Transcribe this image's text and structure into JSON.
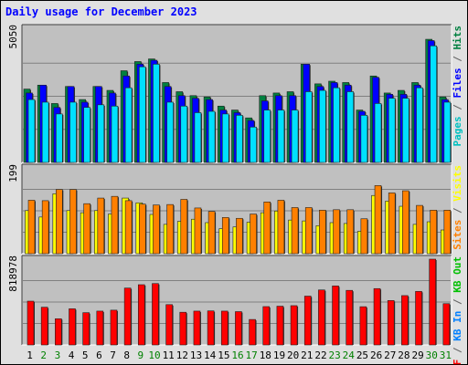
{
  "chart_data": {
    "type": "bar",
    "title": "Daily usage for December 2023",
    "categories": [
      "1",
      "2",
      "3",
      "4",
      "5",
      "6",
      "7",
      "8",
      "9",
      "10",
      "11",
      "12",
      "13",
      "14",
      "15",
      "16",
      "17",
      "18",
      "19",
      "20",
      "21",
      "22",
      "23",
      "24",
      "25",
      "26",
      "27",
      "28",
      "29",
      "30",
      "31"
    ],
    "weekend_days": [
      "2",
      "3",
      "9",
      "10",
      "16",
      "17",
      "23",
      "24",
      "30",
      "31"
    ],
    "panels": [
      {
        "name": "hits-files-pages",
        "ymax": 5050,
        "ymax_label": "5050",
        "right_labels": [
          {
            "text": "Pages",
            "color": "#00c0c0"
          },
          {
            "text": " / ",
            "color": "#606060"
          },
          {
            "text": "Files",
            "color": "#0000ff"
          },
          {
            "text": " / ",
            "color": "#606060"
          },
          {
            "text": "Hits",
            "color": "#008040"
          }
        ],
        "series": [
          {
            "name": "Hits",
            "color": "#008040",
            "values": [
              2800,
              2950,
              2250,
              2900,
              2400,
              2900,
              2750,
              3500,
              3850,
              3950,
              3050,
              2700,
              2550,
              2500,
              2150,
              2000,
              1700,
              2550,
              2650,
              2700,
              3750,
              3000,
              3100,
              3050,
              2000,
              3300,
              2650,
              2750,
              3050,
              4700,
              2500
            ]
          },
          {
            "name": "Files",
            "color": "#0000ff",
            "values": [
              2650,
              2950,
              2100,
              2900,
              2300,
              2900,
              2650,
              3300,
              3750,
              3900,
              2900,
              2550,
              2450,
              2400,
              2000,
              1900,
              1600,
              2350,
              2550,
              2550,
              3750,
              2900,
              3050,
              2950,
              1950,
              3250,
              2600,
              2600,
              2950,
              4650,
              2400
            ]
          },
          {
            "name": "Pages",
            "color": "#00e0ff",
            "values": [
              2400,
              2300,
              1850,
              2300,
              2100,
              2200,
              2150,
              2850,
              3650,
              3750,
              2300,
              2150,
              1900,
              1950,
              1850,
              1800,
              1350,
              2000,
              2000,
              2000,
              2700,
              2750,
              2850,
              2700,
              1800,
              2250,
              2450,
              2450,
              2850,
              4450,
              2300
            ]
          }
        ]
      },
      {
        "name": "visits-sites",
        "ymax": 199,
        "ymax_label": "199",
        "right_labels": [
          {
            "text": "Sites",
            "color": "#ff8000"
          },
          {
            "text": " / ",
            "color": "#606060"
          },
          {
            "text": "Visits",
            "color": "#ffff00"
          }
        ],
        "series": [
          {
            "name": "Visits",
            "color": "#ffff00",
            "values": [
              100,
              85,
              139,
              100,
              95,
              100,
              92,
              129,
              118,
              91,
              68,
              75,
              80,
              72,
              58,
              62,
              73,
              95,
              99,
              78,
              76,
              65,
              72,
              70,
              52,
              135,
              122,
              110,
              68,
              74,
              55
            ]
          },
          {
            "name": "Sites",
            "color": "#ff8000",
            "values": [
              124,
              123,
              149,
              149,
              116,
              129,
              133,
              123,
              115,
              113,
              114,
              126,
              106,
              98,
              84,
              82,
              92,
              120,
              124,
              107,
              107,
              101,
              102,
              102,
              81,
              158,
              141,
              146,
              112,
              101,
              101
            ]
          }
        ]
      },
      {
        "name": "kbytes",
        "ymax": 818978,
        "ymax_label": "818978",
        "right_labels": [
          {
            "text": "KB F",
            "color": "#ff0000"
          },
          {
            "text": " / ",
            "color": "#606060"
          },
          {
            "text": "KB In",
            "color": "#0080ff"
          },
          {
            "text": " / ",
            "color": "#606060"
          },
          {
            "text": "KB Out",
            "color": "#00c000"
          }
        ],
        "series": [
          {
            "name": "KB F",
            "color": "#ff0000",
            "values": [
              418000,
              360000,
              250000,
              345000,
              308000,
              323000,
              332000,
              543000,
              575000,
              586000,
              385000,
              312000,
              323000,
              325000,
              323000,
              318000,
              243000,
              366000,
              370000,
              375000,
              466000,
              525000,
              563000,
              521000,
              365000,
              538000,
              424000,
              471000,
              511000,
              818978,
              394000
            ]
          }
        ]
      }
    ]
  }
}
